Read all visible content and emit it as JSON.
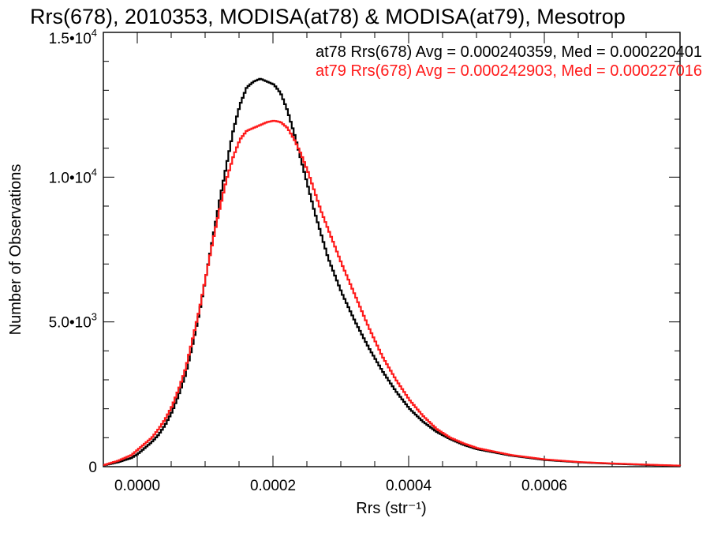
{
  "chart_data": {
    "type": "line",
    "title": "Rrs(678), 2010353, MODISA(at78) & MODISA(at79), Mesotrop",
    "xlabel": "Rrs (str⁻¹)",
    "ylabel": "Number of Observations",
    "xlim": [
      -5e-05,
      0.0008
    ],
    "ylim": [
      0,
      15000
    ],
    "x_ticks": [
      0,
      0.0002,
      0.0004,
      0.0006
    ],
    "x_tick_labels": [
      "0.0000",
      "0.0002",
      "0.0004",
      "0.0006"
    ],
    "y_ticks": [
      0,
      5000,
      10000,
      15000
    ],
    "y_tick_labels": [
      {
        "mantissa": "0",
        "exp": ""
      },
      {
        "mantissa": "5.0•10",
        "exp": "3"
      },
      {
        "mantissa": "1.0•10",
        "exp": "4"
      },
      {
        "mantissa": "1.5•10",
        "exp": "4"
      }
    ],
    "grid": false,
    "series": [
      {
        "name": "at78",
        "color": "#000000",
        "annotation": "at78 Rrs(678) Avg = 0.000240359, Med = 0.000220401",
        "x": [
          -5e-05,
          -3e-05,
          -1e-05,
          0.0,
          1e-05,
          2e-05,
          3e-05,
          4e-05,
          5e-05,
          6e-05,
          7e-05,
          8e-05,
          9e-05,
          0.0001,
          0.00011,
          0.00012,
          0.00013,
          0.00014,
          0.00015,
          0.00016,
          0.00017,
          0.00018,
          0.00019,
          0.0002,
          0.00021,
          0.00022,
          0.00023,
          0.00024,
          0.00025,
          0.00026,
          0.00027,
          0.00028,
          0.00029,
          0.0003,
          0.00032,
          0.00034,
          0.00036,
          0.00038,
          0.0004,
          0.00042,
          0.00044,
          0.00046,
          0.00048,
          0.0005,
          0.00055,
          0.0006,
          0.00065,
          0.0007,
          0.00075,
          0.0008
        ],
        "y": [
          50,
          150,
          300,
          450,
          650,
          850,
          1100,
          1450,
          1900,
          2500,
          3200,
          4200,
          5300,
          6600,
          7900,
          9200,
          10400,
          11600,
          12500,
          13100,
          13300,
          13400,
          13300,
          13200,
          12900,
          12300,
          11500,
          10600,
          9700,
          8800,
          8000,
          7200,
          6600,
          6000,
          5000,
          4100,
          3300,
          2600,
          2000,
          1550,
          1200,
          950,
          750,
          600,
          380,
          230,
          150,
          100,
          60,
          30
        ]
      },
      {
        "name": "at79",
        "color": "#ff1a1a",
        "annotation": "at79 Rrs(678) Avg = 0.000242903, Med = 0.000227016",
        "x": [
          -5e-05,
          -3e-05,
          -1e-05,
          0.0,
          1e-05,
          2e-05,
          3e-05,
          4e-05,
          5e-05,
          6e-05,
          7e-05,
          8e-05,
          9e-05,
          0.0001,
          0.00011,
          0.00012,
          0.00013,
          0.00014,
          0.00015,
          0.00016,
          0.00017,
          0.00018,
          0.00019,
          0.0002,
          0.00021,
          0.00022,
          0.00023,
          0.00024,
          0.00025,
          0.00026,
          0.00027,
          0.00028,
          0.00029,
          0.0003,
          0.00032,
          0.00034,
          0.00036,
          0.00038,
          0.0004,
          0.00042,
          0.00044,
          0.00046,
          0.00048,
          0.0005,
          0.00055,
          0.0006,
          0.00065,
          0.0007,
          0.00075,
          0.0008
        ],
        "y": [
          60,
          200,
          400,
          600,
          800,
          1000,
          1300,
          1650,
          2100,
          2700,
          3400,
          4400,
          5400,
          6600,
          7800,
          8900,
          9900,
          10700,
          11300,
          11600,
          11700,
          11800,
          11900,
          11950,
          11900,
          11700,
          11300,
          10800,
          10200,
          9500,
          8800,
          8200,
          7600,
          7000,
          5900,
          4800,
          3800,
          3000,
          2300,
          1750,
          1300,
          1000,
          800,
          640,
          400,
          250,
          160,
          110,
          70,
          35
        ]
      }
    ]
  }
}
